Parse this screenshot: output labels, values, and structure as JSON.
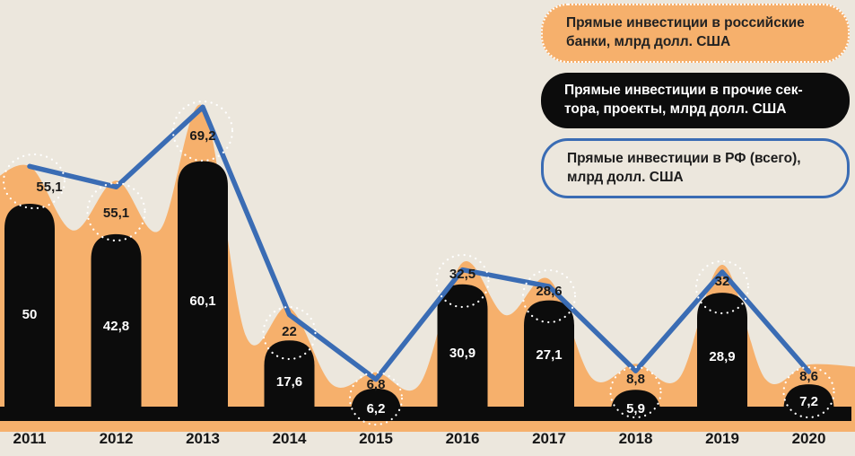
{
  "background": "#ece7dd",
  "colors": {
    "orange": "#f6b06c",
    "black": "#0c0c0c",
    "blue": "#3a6cb4",
    "text_dark": "#1a1a1a",
    "text_light": "#ffffff",
    "dotted_circle": "#ffffff"
  },
  "legend": [
    {
      "id": "banks",
      "style": "orange",
      "lines": [
        "Прямые инвестиции в российские",
        "банки, млрд долл. США"
      ]
    },
    {
      "id": "other",
      "style": "black",
      "lines": [
        "Прямые инвестиции в прочие сек-",
        "тора, проекты, млрд долл. США"
      ]
    },
    {
      "id": "total",
      "style": "outline-blue",
      "lines": [
        "Прямые инвестиции в РФ (всего),",
        "млрд долл. США"
      ]
    }
  ],
  "chart_data": {
    "type": "combo",
    "categories": [
      "2011",
      "2012",
      "2013",
      "2014",
      "2015",
      "2016",
      "2017",
      "2018",
      "2019",
      "2020"
    ],
    "series": [
      {
        "name": "Прямые инвестиции в российские банки, млрд долл. США",
        "type": "area",
        "color": "#f6b06c",
        "values": [
          55.1,
          55.1,
          69.2,
          22,
          6.8,
          32.5,
          28.6,
          8.8,
          32,
          8.6
        ],
        "value_labels": [
          "55,1",
          "55,1",
          "69,2",
          "22",
          "6,8",
          "32,5",
          "28,6",
          "8,8",
          "32",
          "8,6"
        ],
        "labels_circled": true
      },
      {
        "name": "Прямые инвестиции в прочие сектора, проекты, млрд долл. США",
        "type": "bar",
        "color": "#0c0c0c",
        "values": [
          50,
          42.8,
          60.1,
          17.6,
          6.2,
          30.9,
          27.1,
          5.9,
          28.9,
          7.2
        ],
        "value_labels": [
          "50",
          "42,8",
          "60,1",
          "17,6",
          "6,2",
          "30,9",
          "27,1",
          "5,9",
          "28,9",
          "7,2"
        ]
      },
      {
        "name": "Прямые инвестиции в РФ (всего), млрд долл. США",
        "type": "line",
        "color": "#3a6cb4",
        "values": [
          55.1,
          55.1,
          69.2,
          22,
          6.8,
          32.5,
          28.6,
          8.8,
          32,
          8.6
        ]
      }
    ],
    "ylim": [
      0,
      75
    ],
    "grid": false,
    "legend_position": "top-right",
    "xlabel": "",
    "ylabel": ""
  }
}
